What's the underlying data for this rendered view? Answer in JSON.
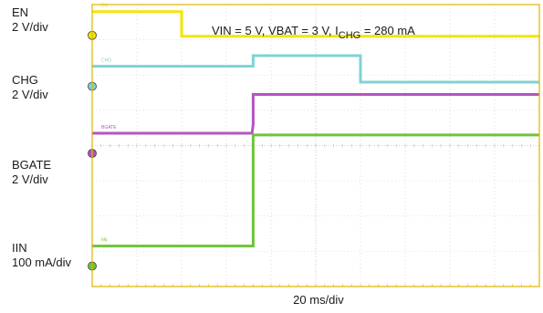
{
  "chart_data": {
    "type": "line",
    "title": "VIN = 5 V, VBAT = 3 V, I",
    "title_sub": "CHG",
    "title_tail": " = 280 mA",
    "xlabel": "20 ms/div",
    "x_unit": "ms",
    "x_range": [
      0,
      200
    ],
    "grid": true,
    "series": [
      {
        "name": "EN",
        "scale": "2 V/div",
        "color": "#f2e600",
        "tag": "EN",
        "x": [
          0,
          40,
          40,
          200
        ],
        "y_div": [
          7.8,
          7.8,
          7.1,
          7.1
        ]
      },
      {
        "name": "CHG",
        "scale": "2 V/div",
        "color": "#7fd3d3",
        "tag": "CHG",
        "x": [
          0,
          72,
          72,
          120,
          120,
          200
        ],
        "y_div": [
          6.25,
          6.25,
          6.55,
          6.55,
          5.8,
          5.8
        ]
      },
      {
        "name": "BGATE",
        "scale": "2 V/div",
        "color": "#b455c0",
        "tag": "BGATE",
        "x": [
          0,
          71.5,
          72,
          72,
          200
        ],
        "y_div": [
          4.35,
          4.35,
          4.6,
          5.45,
          5.45
        ]
      },
      {
        "name": "IIN",
        "scale": "100 mA/div",
        "color": "#6fc33a",
        "tag": "IIN",
        "x": [
          0,
          72,
          72,
          200
        ],
        "y_div": [
          1.15,
          1.15,
          4.3,
          4.3
        ]
      }
    ]
  }
}
